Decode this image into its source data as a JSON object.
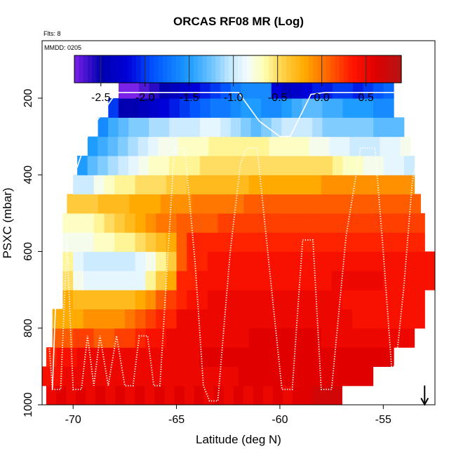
{
  "chart_data": {
    "type": "heatmap",
    "title": "ORCAS RF08 MR (Log)",
    "flights_label": "Flts: 8",
    "date_label": "MMDD: 0205",
    "xlabel": "Latitude (deg N)",
    "ylabel": "PSXC (mbar)",
    "xlim": [
      -71.5,
      -52.5
    ],
    "ylim": [
      1000,
      50
    ],
    "x_ticks": [
      -70,
      -65,
      -60,
      -55
    ],
    "x_tick_labels": [
      "-70",
      "-65",
      "-60",
      "-55"
    ],
    "y_ticks": [
      200,
      400,
      600,
      800,
      1000
    ],
    "y_tick_labels": [
      "200",
      "400",
      "600",
      "800",
      "1000"
    ],
    "colorbar": {
      "range": [
        -2.8,
        0.9
      ],
      "ticks": [
        -2.5,
        -2.0,
        -1.5,
        -1.0,
        -0.5,
        0.0,
        0.5
      ],
      "tick_labels": [
        "-2.5",
        "-2.0",
        "-1.5",
        "-1.0",
        "-0.5",
        "0.0",
        "0.5"
      ],
      "stops": [
        {
          "v": -2.8,
          "c": "#7b22e8"
        },
        {
          "v": -2.5,
          "c": "#0000b0"
        },
        {
          "v": -2.2,
          "c": "#0000d8"
        },
        {
          "v": -1.9,
          "c": "#0055ff"
        },
        {
          "v": -1.5,
          "c": "#1e9cff"
        },
        {
          "v": -1.25,
          "c": "#6cc3ff"
        },
        {
          "v": -1.05,
          "c": "#bfe6ff"
        },
        {
          "v": -0.85,
          "c": "#f2fbff"
        },
        {
          "v": -0.65,
          "c": "#ffffb0"
        },
        {
          "v": -0.45,
          "c": "#ffd24a"
        },
        {
          "v": -0.2,
          "c": "#ffaa00"
        },
        {
          "v": 0.05,
          "c": "#ff6a00"
        },
        {
          "v": 0.35,
          "c": "#ff1500"
        },
        {
          "v": 0.6,
          "c": "#e00000"
        },
        {
          "v": 0.9,
          "c": "#b41414"
        }
      ]
    },
    "grid": {
      "x_start": -71.5,
      "x_step": 0.5,
      "p_levels": [
        1000,
        950,
        900,
        850,
        800,
        750,
        700,
        650,
        600,
        550,
        500,
        450,
        400,
        350,
        300,
        250,
        200,
        150
      ],
      "rows": [
        {
          "p_bottom": 1000,
          "p_top": 950,
          "x_range": [
            -71.3,
            -57.0
          ],
          "values": [
            0.5,
            0.6,
            0.5,
            0.6,
            0.5,
            0.6,
            0.5,
            0.6,
            0.5,
            0.6,
            0.5,
            0.6,
            0.5,
            0.6,
            0.5,
            0.6,
            0.5,
            0.6,
            0.5,
            0.6,
            0.5,
            0.6,
            0.5,
            0.6,
            0.5,
            0.6,
            0.6,
            0.7,
            0.7,
            0.7
          ]
        },
        {
          "p_bottom": 950,
          "p_top": 900,
          "x_range": [
            -71.5,
            -55.5
          ],
          "values": [
            0.4,
            0.4,
            0.5,
            0.5,
            0.5,
            0.5,
            0.5,
            0.5,
            0.5,
            0.5,
            0.5,
            0.5,
            0.5,
            0.5,
            0.5,
            0.5,
            0.5,
            0.5,
            0.5,
            0.6,
            0.6,
            0.6,
            0.6,
            0.6,
            0.6,
            0.6,
            0.6,
            0.6,
            0.6,
            0.6,
            0.6,
            0.6
          ]
        },
        {
          "p_bottom": 900,
          "p_top": 850,
          "x_range": [
            -71.3,
            -54.5
          ],
          "values": [
            0.3,
            0.4,
            0.4,
            0.5,
            0.5,
            0.5,
            0.5,
            0.5,
            0.5,
            0.5,
            0.5,
            0.5,
            0.5,
            0.5,
            0.5,
            0.6,
            0.6,
            0.6,
            0.6,
            0.6,
            0.6,
            0.6,
            0.6,
            0.6,
            0.6,
            0.6,
            0.6,
            0.6,
            0.6,
            0.6,
            0.6,
            0.6,
            0.6,
            0.6
          ]
        },
        {
          "p_bottom": 850,
          "p_top": 800,
          "x_range": [
            -71.0,
            -53.5
          ],
          "values": [
            0.1,
            0.1,
            0.2,
            0.2,
            0.1,
            0.1,
            0.2,
            0.2,
            0.3,
            0.4,
            0.4,
            0.5,
            0.5,
            0.5,
            0.5,
            0.5,
            0.5,
            0.5,
            0.5,
            0.6,
            0.6,
            0.6,
            0.6,
            0.6,
            0.6,
            0.6,
            0.5,
            0.5,
            0.5,
            0.5,
            0.5,
            0.5,
            0.5,
            0.5,
            0.5
          ]
        },
        {
          "p_bottom": 800,
          "p_top": 750,
          "x_range": [
            -71.0,
            -53.0
          ],
          "values": [
            -0.2,
            -0.2,
            -0.2,
            -0.1,
            -0.1,
            -0.1,
            -0.1,
            0.0,
            0.1,
            0.2,
            0.3,
            0.3,
            0.5,
            0.5,
            0.5,
            0.5,
            0.5,
            0.5,
            0.5,
            0.5,
            0.5,
            0.5,
            0.5,
            0.5,
            0.5,
            0.5,
            0.5,
            0.5,
            0.5,
            0.4,
            0.4,
            0.4,
            0.4,
            0.4,
            0.4,
            0.4
          ]
        },
        {
          "p_bottom": 750,
          "p_top": 700,
          "x_range": [
            -70.5,
            -53.0
          ],
          "values": [
            -0.2,
            -0.3,
            -0.3,
            -0.3,
            -0.3,
            -0.3,
            -0.3,
            -0.2,
            -0.1,
            0.1,
            0.2,
            0.3,
            0.4,
            0.4,
            0.5,
            0.5,
            0.5,
            0.5,
            0.5,
            0.5,
            0.5,
            0.5,
            0.5,
            0.5,
            0.5,
            0.5,
            0.5,
            0.4,
            0.4,
            0.4,
            0.4,
            0.4,
            0.4,
            0.4,
            0.4
          ]
        },
        {
          "p_bottom": 700,
          "p_top": 650,
          "x_range": [
            -70.5,
            -52.5
          ],
          "values": [
            -0.5,
            -0.8,
            -0.9,
            -0.9,
            -0.9,
            -0.9,
            -0.9,
            -0.9,
            -0.6,
            -0.4,
            -0.2,
            0.3,
            0.3,
            0.4,
            0.4,
            0.4,
            0.4,
            0.4,
            0.4,
            0.4,
            0.4,
            0.4,
            0.4,
            0.4,
            0.4,
            0.4,
            0.5,
            0.5,
            0.5,
            0.5,
            0.5,
            0.4,
            0.4,
            0.4,
            0.4,
            0.4
          ]
        },
        {
          "p_bottom": 650,
          "p_top": 600,
          "x_range": [
            -70.5,
            -52.5
          ],
          "values": [
            -0.6,
            -0.9,
            -1.0,
            -1.0,
            -1.0,
            -1.0,
            -1.0,
            -0.9,
            -0.8,
            -0.6,
            -0.4,
            0.1,
            0.3,
            0.3,
            0.4,
            0.4,
            0.4,
            0.4,
            0.4,
            0.4,
            0.4,
            0.4,
            0.4,
            0.4,
            0.4,
            0.4,
            0.4,
            0.4,
            0.4,
            0.4,
            0.4,
            0.4,
            0.4,
            0.4,
            0.4,
            0.4
          ]
        },
        {
          "p_bottom": 600,
          "p_top": 550,
          "x_range": [
            -70.5,
            -53.0
          ],
          "values": [
            -0.8,
            -0.8,
            -0.8,
            -0.7,
            -0.7,
            -0.6,
            -0.6,
            -0.5,
            -0.4,
            -0.3,
            -0.2,
            0.1,
            0.3,
            0.3,
            0.3,
            0.3,
            0.3,
            0.3,
            0.3,
            0.3,
            0.3,
            0.3,
            0.3,
            0.3,
            0.3,
            0.3,
            0.3,
            0.3,
            0.3,
            0.3,
            0.3,
            0.3,
            0.3,
            0.3,
            0.3
          ]
        },
        {
          "p_bottom": 550,
          "p_top": 500,
          "x_range": [
            -70.5,
            -53.0
          ],
          "values": [
            -0.7,
            -0.7,
            -0.7,
            -0.6,
            -0.5,
            -0.4,
            -0.3,
            -0.2,
            -0.1,
            0.0,
            0.0,
            0.1,
            0.1,
            0.1,
            0.1,
            0.2,
            0.2,
            0.2,
            0.2,
            0.2,
            0.2,
            0.2,
            0.2,
            0.2,
            0.2,
            0.2,
            0.2,
            0.2,
            0.2,
            0.2,
            0.2,
            0.2,
            0.2,
            0.2,
            0.2
          ]
        },
        {
          "p_bottom": 500,
          "p_top": 450,
          "x_range": [
            -70.3,
            -53.2
          ],
          "values": [
            -0.4,
            -0.4,
            -0.4,
            -0.3,
            -0.3,
            -0.3,
            -0.2,
            -0.2,
            -0.2,
            -0.1,
            -0.1,
            -0.1,
            0.0,
            0.0,
            0.0,
            0.0,
            0.0,
            0.1,
            0.1,
            0.1,
            0.1,
            0.1,
            0.1,
            0.1,
            0.1,
            0.1,
            0.1,
            0.1,
            0.1,
            0.1,
            0.1,
            0.1,
            0.1,
            0.1
          ]
        },
        {
          "p_bottom": 450,
          "p_top": 400,
          "x_range": [
            -70.0,
            -53.5
          ],
          "values": [
            -1.0,
            -1.0,
            -0.8,
            -0.7,
            -0.6,
            -0.6,
            -0.5,
            -0.5,
            -0.5,
            -0.4,
            -0.4,
            -0.3,
            -0.3,
            -0.3,
            -0.3,
            -0.3,
            -0.3,
            -0.2,
            -0.2,
            -0.2,
            -0.2,
            -0.2,
            -0.2,
            -0.2,
            -0.1,
            -0.1,
            -0.1,
            -0.1,
            -0.1,
            -0.1,
            -0.1,
            -0.1,
            -0.1
          ]
        },
        {
          "p_bottom": 400,
          "p_top": 350,
          "x_range": [
            -69.8,
            -53.5
          ],
          "values": [
            -1.5,
            -1.3,
            -1.2,
            -1.1,
            -1.0,
            -0.9,
            -0.8,
            -0.7,
            -0.7,
            -0.6,
            -0.6,
            -0.6,
            -0.5,
            -0.5,
            -0.5,
            -0.5,
            -0.5,
            -0.5,
            -0.5,
            -0.5,
            -0.5,
            -0.5,
            -0.5,
            -0.5,
            -0.5,
            -0.6,
            -0.7,
            -0.7,
            -0.8,
            -0.8,
            -0.9,
            -0.9,
            -1.0
          ]
        },
        {
          "p_bottom": 350,
          "p_top": 300,
          "x_range": [
            -69.3,
            -53.7
          ],
          "values": [
            -1.5,
            -1.4,
            -1.3,
            -1.2,
            -1.1,
            -1.0,
            -0.9,
            -0.8,
            -0.8,
            -0.7,
            -0.7,
            -0.7,
            -0.6,
            -0.6,
            -0.6,
            -0.6,
            -0.6,
            -0.6,
            -0.7,
            -0.7,
            -0.7,
            -0.7,
            -0.8,
            -0.8,
            -0.9,
            -0.9,
            -1.0,
            -1.0,
            -1.0,
            -0.9,
            -0.9,
            -0.8
          ]
        },
        {
          "p_bottom": 300,
          "p_top": 250,
          "x_range": [
            -68.8,
            -54.0
          ],
          "values": [
            -1.6,
            -1.4,
            -1.3,
            -1.2,
            -1.2,
            -1.1,
            -1.1,
            -1.0,
            -1.0,
            -1.0,
            -0.9,
            -0.9,
            -1.0,
            -1.1,
            -1.2,
            -1.3,
            -1.2,
            -1.1,
            -1.0,
            -1.0,
            -1.0,
            -1.1,
            -1.2,
            -1.2,
            -1.2,
            -1.2,
            -1.2,
            -1.3,
            -1.3,
            -1.3
          ]
        },
        {
          "p_bottom": 250,
          "p_top": 200,
          "x_range": [
            -68.3,
            -54.5
          ],
          "values": [
            -2.0,
            -2.5,
            -2.5,
            -2.4,
            -2.3,
            -2.2,
            -2.1,
            -2.0,
            -1.9,
            -1.8,
            -1.7,
            -1.7,
            -1.6,
            -1.5,
            -1.5,
            -1.6,
            -1.6,
            -1.5,
            -1.4,
            -1.3,
            -1.3,
            -1.4,
            -1.4,
            -1.5,
            -1.5,
            -1.5,
            -1.6,
            -1.6
          ]
        },
        {
          "p_bottom": 200,
          "p_top": 160,
          "x_range": [
            -67.8,
            -54.5
          ],
          "values": [
            -2.8,
            -2.8,
            -2.7,
            -2.6,
            -2.5,
            -2.4,
            -2.3,
            -2.2,
            -2.1,
            -2.0,
            -1.9,
            -1.7,
            -1.6,
            -1.6,
            -1.6,
            -2.2,
            -2.4,
            -2.3,
            -2.2,
            -2.1,
            -2.1,
            -2.0,
            -2.0,
            -2.1,
            -2.0,
            -1.9,
            -1.8
          ]
        }
      ]
    },
    "flight_tracks": [
      {
        "style": "solid",
        "points": [
          [
            -71.0,
            960
          ],
          [
            -70.6,
            380
          ],
          [
            -69.8,
            380
          ],
          [
            -69.3,
            300
          ],
          [
            -68.8,
            255
          ],
          [
            -67.9,
            185
          ],
          [
            -65.5,
            185
          ],
          [
            -62.8,
            185
          ],
          [
            -62.0,
            185
          ],
          [
            -61.0,
            260
          ],
          [
            -60.0,
            300
          ],
          [
            -59.5,
            300
          ],
          [
            -58.5,
            190
          ],
          [
            -57.8,
            185
          ],
          [
            -54.0,
            185
          ],
          [
            -53.6,
            230
          ],
          [
            -53.2,
            370
          ],
          [
            -53.0,
            440
          ]
        ]
      },
      {
        "style": "dotted",
        "points": [
          [
            -71.2,
            810
          ],
          [
            -71.0,
            960
          ],
          [
            -70.6,
            960
          ],
          [
            -70.3,
            570
          ],
          [
            -70.0,
            960
          ],
          [
            -69.6,
            960
          ],
          [
            -69.3,
            820
          ],
          [
            -69.0,
            950
          ],
          [
            -68.7,
            820
          ],
          [
            -68.3,
            950
          ],
          [
            -67.9,
            820
          ],
          [
            -67.5,
            950
          ],
          [
            -67.1,
            950
          ],
          [
            -66.8,
            820
          ],
          [
            -66.4,
            820
          ],
          [
            -66.1,
            950
          ],
          [
            -65.8,
            950
          ],
          [
            -65.1,
            330
          ],
          [
            -64.6,
            330
          ],
          [
            -64.1,
            630
          ],
          [
            -63.7,
            950
          ],
          [
            -63.4,
            990
          ],
          [
            -63.0,
            990
          ],
          [
            -62.4,
            600
          ],
          [
            -61.9,
            370
          ],
          [
            -61.6,
            330
          ],
          [
            -61.1,
            330
          ],
          [
            -60.4,
            700
          ],
          [
            -59.9,
            960
          ],
          [
            -59.4,
            960
          ],
          [
            -58.9,
            570
          ],
          [
            -58.4,
            570
          ],
          [
            -58.0,
            960
          ],
          [
            -57.5,
            960
          ],
          [
            -56.8,
            560
          ],
          [
            -56.1,
            330
          ],
          [
            -55.4,
            330
          ],
          [
            -55.0,
            600
          ],
          [
            -54.6,
            900
          ],
          [
            -54.4,
            900
          ],
          [
            -54.0,
            690
          ],
          [
            -53.6,
            420
          ],
          [
            -53.2,
            300
          ]
        ]
      }
    ],
    "marker": {
      "symbol": "down-arrow",
      "x": -53.0,
      "p": 990
    }
  }
}
